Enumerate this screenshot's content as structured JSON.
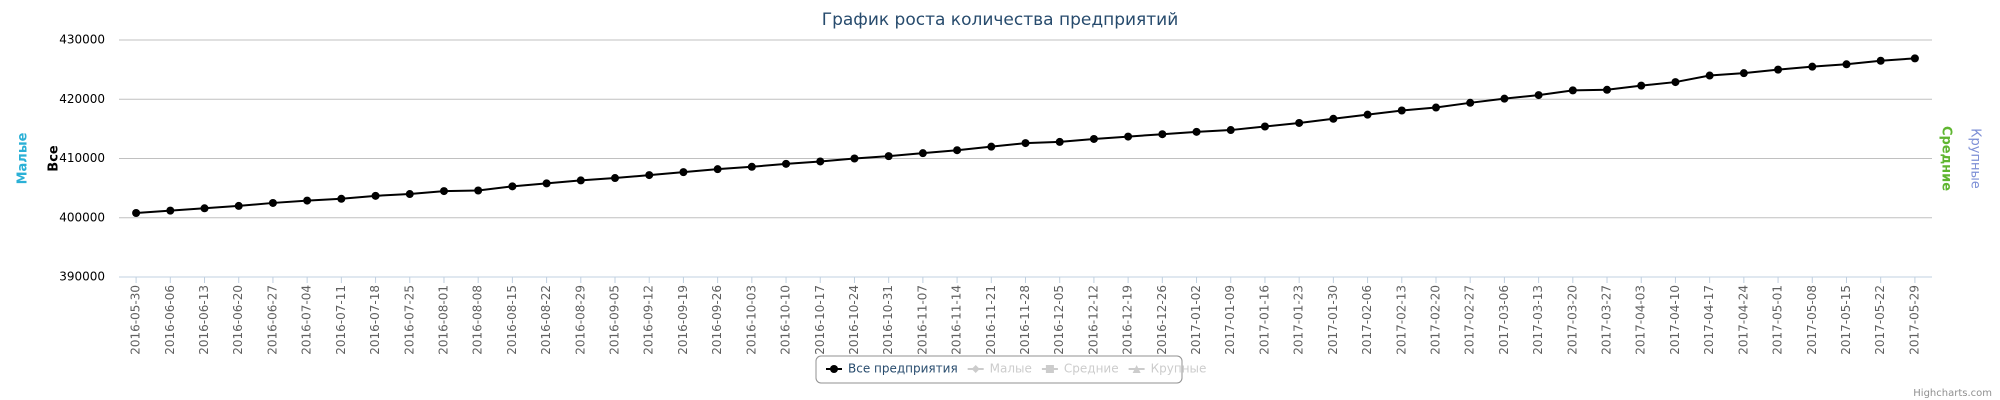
{
  "chart_data": {
    "type": "line",
    "title": "График роста количества предприятий",
    "categories": [
      "2016-05-30",
      "2016-06-06",
      "2016-06-13",
      "2016-06-20",
      "2016-06-27",
      "2016-07-04",
      "2016-07-11",
      "2016-07-18",
      "2016-07-25",
      "2016-08-01",
      "2016-08-08",
      "2016-08-15",
      "2016-08-22",
      "2016-08-29",
      "2016-09-05",
      "2016-09-12",
      "2016-09-19",
      "2016-09-26",
      "2016-10-03",
      "2016-10-10",
      "2016-10-17",
      "2016-10-24",
      "2016-10-31",
      "2016-11-07",
      "2016-11-14",
      "2016-11-21",
      "2016-11-28",
      "2016-12-05",
      "2016-12-12",
      "2016-12-19",
      "2016-12-26",
      "2017-01-02",
      "2017-01-09",
      "2017-01-16",
      "2017-01-23",
      "2017-01-30",
      "2017-02-06",
      "2017-02-13",
      "2017-02-20",
      "2017-02-27",
      "2017-03-06",
      "2017-03-13",
      "2017-03-20",
      "2017-03-27",
      "2017-04-03",
      "2017-04-10",
      "2017-04-17",
      "2017-04-24",
      "2017-05-01",
      "2017-05-08",
      "2017-05-15",
      "2017-05-22",
      "2017-05-29"
    ],
    "series": [
      {
        "name": "Все предприятия",
        "color": "#000000",
        "values": [
          400800,
          401200,
          401600,
          402000,
          402500,
          402900,
          403200,
          403700,
          404000,
          404500,
          404600,
          405300,
          405800,
          406300,
          406700,
          407200,
          407700,
          408200,
          408600,
          409100,
          409500,
          410000,
          410400,
          410900,
          411400,
          412000,
          412600,
          412800,
          413300,
          413700,
          414100,
          414500,
          414800,
          415400,
          416000,
          416700,
          417400,
          418100,
          418600,
          419400,
          420100,
          420700,
          421500,
          421600,
          422300,
          422900,
          424000,
          424400,
          425000,
          425500,
          425900,
          426500,
          426900
        ]
      }
    ],
    "legend_hidden": [
      {
        "name": "Малые",
        "symbol": "diamond"
      },
      {
        "name": "Средние",
        "symbol": "square"
      },
      {
        "name": "Крупные",
        "symbol": "triangle"
      }
    ],
    "hidden_color": "#cccccc",
    "axis_titles_left": [
      {
        "text": "Малые",
        "color": "#2bb0d6"
      },
      {
        "text": "Все",
        "color": "#000000"
      }
    ],
    "axis_titles_right": [
      {
        "text": "Средние",
        "color": "#5fb630"
      },
      {
        "text": "Крупные",
        "color": "#7d8fd6"
      }
    ],
    "ylim": [
      390000,
      430000
    ],
    "yticks": [
      390000,
      400000,
      410000,
      420000,
      430000
    ],
    "grid": true,
    "credits": "Highcharts.com"
  }
}
